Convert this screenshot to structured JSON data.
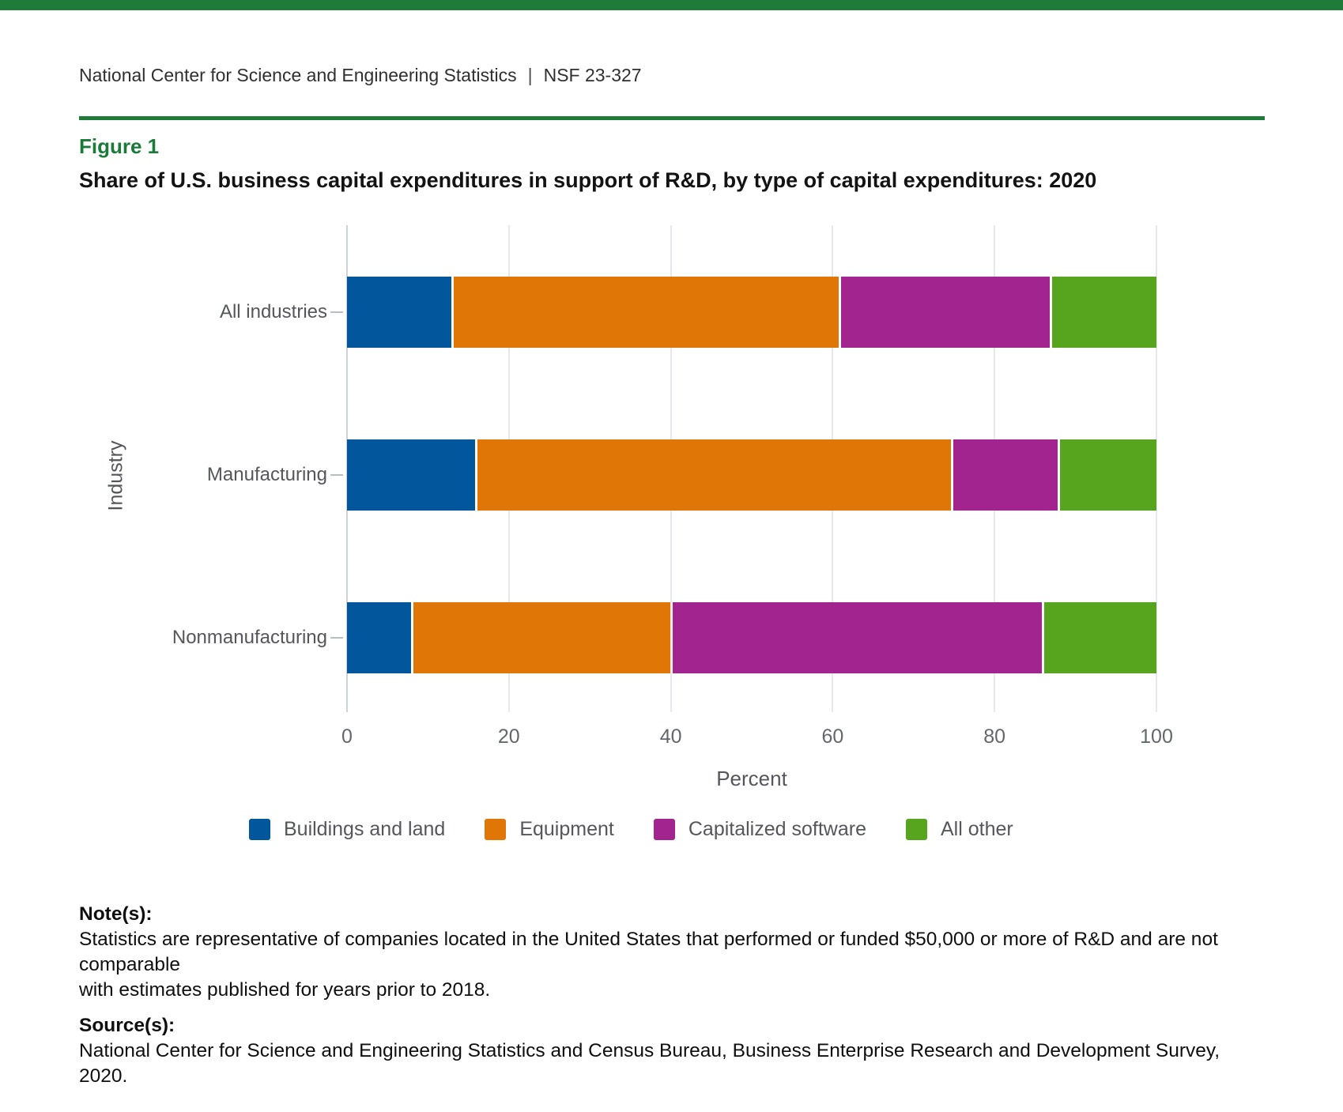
{
  "header": {
    "org": "National Center for Science and Engineering Statistics",
    "separator": "|",
    "pub": "NSF 23-327"
  },
  "figure": {
    "label": "Figure 1",
    "title": "Share of U.S. business capital expenditures in support of R&D, by type of capital expenditures: 2020"
  },
  "chart_data": {
    "type": "bar",
    "orientation": "horizontal",
    "stacked": true,
    "categories": [
      "All industries",
      "Manufacturing",
      "Nonmanufacturing"
    ],
    "series": [
      {
        "name": "Buildings and land",
        "color": "#02569b",
        "values": [
          13,
          16,
          8
        ]
      },
      {
        "name": "Equipment",
        "color": "#df7606",
        "values": [
          48,
          59,
          32
        ]
      },
      {
        "name": "Capitalized software",
        "color": "#a2248f",
        "values": [
          26,
          13,
          46
        ]
      },
      {
        "name": "All other",
        "color": "#57a41f",
        "values": [
          13,
          12,
          14
        ]
      }
    ],
    "xlabel": "Percent",
    "ylabel": "Industry",
    "xlim": [
      0,
      100
    ],
    "xticks": [
      0,
      20,
      40,
      60,
      80,
      100
    ],
    "grid": true,
    "legend_position": "bottom",
    "accent_color": "#1e7b39"
  },
  "notes": {
    "label": "Note(s):",
    "text": "Statistics are representative of companies located in the United States that performed or funded $50,000 or more of R&D and are not comparable\nwith estimates published for years prior to 2018."
  },
  "source": {
    "label": "Source(s):",
    "text": "National Center for Science and Engineering Statistics and Census Bureau, Business Enterprise Research and Development Survey, 2020."
  }
}
